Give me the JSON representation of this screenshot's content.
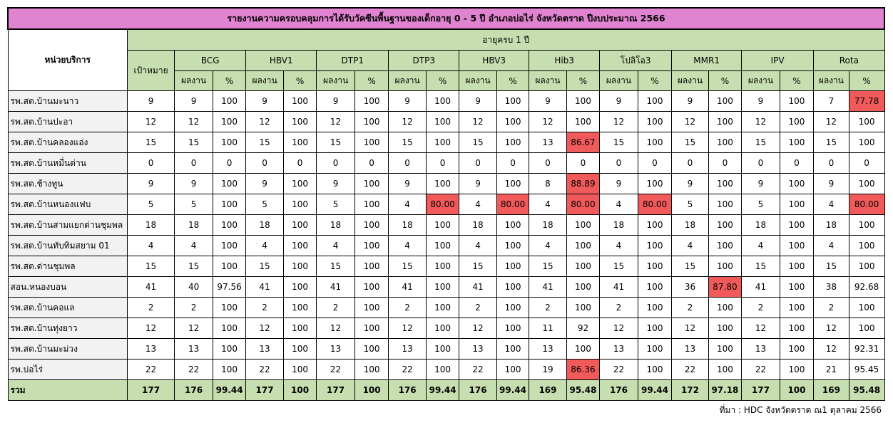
{
  "title": "รายงานความครอบคลุมการได้รับวัคซีนพื้นฐานของเด็กอายุ 0 - 5 ปี อำเภอบ่อไร่ จังหวัดตราด  ปีงบประมาณ 2566",
  "header": {
    "unit_label": "หน่วยบริการ",
    "age_group": "อายุครบ 1 ปี",
    "target_label": "เป้าหมาย",
    "result_label": "ผลงาน",
    "percent_label": "%",
    "vaccines": [
      "BCG",
      "HBV1",
      "DTP1",
      "DTP3",
      "HBV3",
      "Hib3",
      "โปลิโอ3",
      "MMR1",
      "IPV",
      "Rota"
    ]
  },
  "highlight_color": "#f15a5a",
  "rows": [
    {
      "unit": "รพ.สต.บ้านมะนาว",
      "target": "9",
      "cells": [
        [
          "9",
          "100"
        ],
        [
          "9",
          "100"
        ],
        [
          "9",
          "100"
        ],
        [
          "9",
          "100"
        ],
        [
          "9",
          "100"
        ],
        [
          "9",
          "100"
        ],
        [
          "9",
          "100"
        ],
        [
          "9",
          "100"
        ],
        [
          "9",
          "100"
        ],
        [
          "7",
          "77.78"
        ]
      ],
      "low": [
        9
      ]
    },
    {
      "unit": "รพ.สต.บ้านปะอา",
      "target": "12",
      "cells": [
        [
          "12",
          "100"
        ],
        [
          "12",
          "100"
        ],
        [
          "12",
          "100"
        ],
        [
          "12",
          "100"
        ],
        [
          "12",
          "100"
        ],
        [
          "12",
          "100"
        ],
        [
          "12",
          "100"
        ],
        [
          "12",
          "100"
        ],
        [
          "12",
          "100"
        ],
        [
          "12",
          "100"
        ]
      ],
      "low": []
    },
    {
      "unit": "รพ.สต.บ้านคลองแอ่ง",
      "target": "15",
      "cells": [
        [
          "15",
          "100"
        ],
        [
          "15",
          "100"
        ],
        [
          "15",
          "100"
        ],
        [
          "15",
          "100"
        ],
        [
          "15",
          "100"
        ],
        [
          "13",
          "86.67"
        ],
        [
          "15",
          "100"
        ],
        [
          "15",
          "100"
        ],
        [
          "15",
          "100"
        ],
        [
          "15",
          "100"
        ]
      ],
      "low": [
        5
      ]
    },
    {
      "unit": "รพ.สต.บ้านหมื่นด่าน",
      "target": "0",
      "cells": [
        [
          "0",
          "0"
        ],
        [
          "0",
          "0"
        ],
        [
          "0",
          "0"
        ],
        [
          "0",
          "0"
        ],
        [
          "0",
          "0"
        ],
        [
          "0",
          "0"
        ],
        [
          "0",
          "0"
        ],
        [
          "0",
          "0"
        ],
        [
          "0",
          "0"
        ],
        [
          "0",
          "0"
        ]
      ],
      "low": []
    },
    {
      "unit": "รพ.สต.ช้างทูน",
      "target": "9",
      "cells": [
        [
          "9",
          "100"
        ],
        [
          "9",
          "100"
        ],
        [
          "9",
          "100"
        ],
        [
          "9",
          "100"
        ],
        [
          "9",
          "100"
        ],
        [
          "8",
          "88.89"
        ],
        [
          "9",
          "100"
        ],
        [
          "9",
          "100"
        ],
        [
          "9",
          "100"
        ],
        [
          "9",
          "100"
        ]
      ],
      "low": [
        5
      ]
    },
    {
      "unit": "รพ.สต.บ้านหนองแฟบ",
      "target": "5",
      "cells": [
        [
          "5",
          "100"
        ],
        [
          "5",
          "100"
        ],
        [
          "5",
          "100"
        ],
        [
          "4",
          "80.00"
        ],
        [
          "4",
          "80.00"
        ],
        [
          "4",
          "80.00"
        ],
        [
          "4",
          "80.00"
        ],
        [
          "5",
          "100"
        ],
        [
          "5",
          "100"
        ],
        [
          "4",
          "80.00"
        ]
      ],
      "low": [
        3,
        4,
        5,
        6,
        9
      ]
    },
    {
      "unit": "รพ.สต.บ้านสามแยกด่านชุมพล",
      "target": "18",
      "cells": [
        [
          "18",
          "100"
        ],
        [
          "18",
          "100"
        ],
        [
          "18",
          "100"
        ],
        [
          "18",
          "100"
        ],
        [
          "18",
          "100"
        ],
        [
          "18",
          "100"
        ],
        [
          "18",
          "100"
        ],
        [
          "18",
          "100"
        ],
        [
          "18",
          "100"
        ],
        [
          "18",
          "100"
        ]
      ],
      "low": []
    },
    {
      "unit": "รพ.สต.บ้านทับทิมสยาม 01",
      "target": "4",
      "cells": [
        [
          "4",
          "100"
        ],
        [
          "4",
          "100"
        ],
        [
          "4",
          "100"
        ],
        [
          "4",
          "100"
        ],
        [
          "4",
          "100"
        ],
        [
          "4",
          "100"
        ],
        [
          "4",
          "100"
        ],
        [
          "4",
          "100"
        ],
        [
          "4",
          "100"
        ],
        [
          "4",
          "100"
        ]
      ],
      "low": []
    },
    {
      "unit": "รพ.สต.ด่านชุมพล",
      "target": "15",
      "cells": [
        [
          "15",
          "100"
        ],
        [
          "15",
          "100"
        ],
        [
          "15",
          "100"
        ],
        [
          "15",
          "100"
        ],
        [
          "15",
          "100"
        ],
        [
          "15",
          "100"
        ],
        [
          "15",
          "100"
        ],
        [
          "15",
          "100"
        ],
        [
          "15",
          "100"
        ],
        [
          "15",
          "100"
        ]
      ],
      "low": []
    },
    {
      "unit": "สอน.หนองบอน",
      "target": "41",
      "cells": [
        [
          "40",
          "97.56"
        ],
        [
          "41",
          "100"
        ],
        [
          "41",
          "100"
        ],
        [
          "41",
          "100"
        ],
        [
          "41",
          "100"
        ],
        [
          "41",
          "100"
        ],
        [
          "41",
          "100"
        ],
        [
          "36",
          "87.80"
        ],
        [
          "41",
          "100"
        ],
        [
          "38",
          "92.68"
        ]
      ],
      "low": [
        7
      ]
    },
    {
      "unit": "รพ.สต.บ้านคอแล",
      "target": "2",
      "cells": [
        [
          "2",
          "100"
        ],
        [
          "2",
          "100"
        ],
        [
          "2",
          "100"
        ],
        [
          "2",
          "100"
        ],
        [
          "2",
          "100"
        ],
        [
          "2",
          "100"
        ],
        [
          "2",
          "100"
        ],
        [
          "2",
          "100"
        ],
        [
          "2",
          "100"
        ],
        [
          "2",
          "100"
        ]
      ],
      "low": []
    },
    {
      "unit": "รพ.สต.บ้านทุ่งยาว",
      "target": "12",
      "cells": [
        [
          "12",
          "100"
        ],
        [
          "12",
          "100"
        ],
        [
          "12",
          "100"
        ],
        [
          "12",
          "100"
        ],
        [
          "12",
          "100"
        ],
        [
          "11",
          "92"
        ],
        [
          "12",
          "100"
        ],
        [
          "12",
          "100"
        ],
        [
          "12",
          "100"
        ],
        [
          "12",
          "100"
        ]
      ],
      "low": []
    },
    {
      "unit": "รพ.สต.บ้านมะม่วง",
      "target": "13",
      "cells": [
        [
          "13",
          "100"
        ],
        [
          "13",
          "100"
        ],
        [
          "13",
          "100"
        ],
        [
          "13",
          "100"
        ],
        [
          "13",
          "100"
        ],
        [
          "13",
          "100"
        ],
        [
          "13",
          "100"
        ],
        [
          "13",
          "100"
        ],
        [
          "13",
          "100"
        ],
        [
          "12",
          "92.31"
        ]
      ],
      "low": []
    },
    {
      "unit": "รพ.บ่อไร่",
      "target": "22",
      "cells": [
        [
          "22",
          "100"
        ],
        [
          "22",
          "100"
        ],
        [
          "22",
          "100"
        ],
        [
          "22",
          "100"
        ],
        [
          "22",
          "100"
        ],
        [
          "19",
          "86.36"
        ],
        [
          "22",
          "100"
        ],
        [
          "22",
          "100"
        ],
        [
          "22",
          "100"
        ],
        [
          "21",
          "95.45"
        ]
      ],
      "low": [
        5
      ]
    }
  ],
  "total": {
    "unit": "รวม",
    "target": "177",
    "cells": [
      [
        "176",
        "99.44"
      ],
      [
        "177",
        "100"
      ],
      [
        "177",
        "100"
      ],
      [
        "176",
        "99.44"
      ],
      [
        "176",
        "99.44"
      ],
      [
        "169",
        "95.48"
      ],
      [
        "176",
        "99.44"
      ],
      [
        "172",
        "97.18"
      ],
      [
        "177",
        "100"
      ],
      [
        "169",
        "95.48"
      ]
    ]
  },
  "source": "ที่มา : HDC จังหวัดตราด ณ1 ตุลาคม 2566"
}
